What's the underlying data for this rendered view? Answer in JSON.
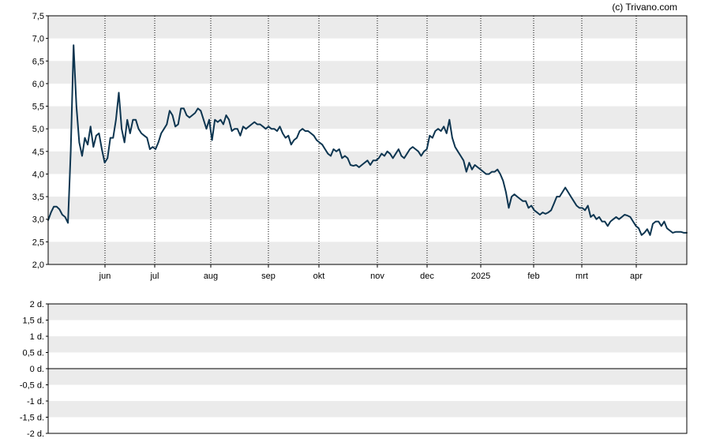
{
  "copyright": "(c) Trivano.com",
  "colors": {
    "line": "#0d3550",
    "band": "#ebebeb",
    "frame": "#000000",
    "zero_line": "#000000",
    "month_grid": "#000000"
  },
  "chart_data": [
    {
      "type": "line",
      "title": "",
      "xlabel": "",
      "ylabel": "",
      "ylim": [
        2.0,
        7.5
      ],
      "y_ticks": [
        "2,0",
        "2,5",
        "3,0",
        "3,5",
        "4,0",
        "4,5",
        "5,0",
        "5,5",
        "6,0",
        "6,5",
        "7,0",
        "7,5"
      ],
      "x_ticks": [
        "jun",
        "jul",
        "aug",
        "sep",
        "okt",
        "nov",
        "dec",
        "2025",
        "feb",
        "mrt",
        "apr"
      ],
      "grid": "alternating horizontal bands with dotted vertical month lines",
      "series": [
        {
          "values": [
            2.98,
            3.15,
            3.28,
            3.28,
            3.22,
            3.1,
            3.05,
            2.92,
            4.5,
            6.85,
            5.5,
            4.7,
            4.4,
            4.8,
            4.65,
            5.05,
            4.6,
            4.85,
            4.9,
            4.55,
            4.25,
            4.35,
            4.8,
            4.8,
            5.2,
            5.8,
            5.0,
            4.7,
            5.2,
            4.9,
            5.2,
            5.2,
            5.0,
            4.9,
            4.85,
            4.8,
            4.55,
            4.6,
            4.55,
            4.7,
            4.9,
            5.0,
            5.1,
            5.4,
            5.3,
            5.05,
            5.1,
            5.45,
            5.45,
            5.3,
            5.25,
            5.3,
            5.35,
            5.45,
            5.4,
            5.2,
            5.0,
            5.2,
            4.75,
            5.2,
            5.15,
            5.2,
            5.1,
            5.3,
            5.2,
            4.95,
            5.0,
            5.0,
            4.85,
            5.05,
            5.0,
            5.05,
            5.1,
            5.15,
            5.1,
            5.1,
            5.05,
            5.0,
            5.05,
            5.0,
            5.0,
            4.95,
            5.05,
            4.9,
            4.8,
            4.85,
            4.65,
            4.75,
            4.8,
            4.95,
            5.0,
            4.95,
            4.95,
            4.9,
            4.85,
            4.75,
            4.7,
            4.65,
            4.55,
            4.45,
            4.4,
            4.55,
            4.5,
            4.55,
            4.35,
            4.4,
            4.35,
            4.2,
            4.18,
            4.2,
            4.15,
            4.2,
            4.25,
            4.3,
            4.2,
            4.3,
            4.3,
            4.35,
            4.45,
            4.4,
            4.5,
            4.45,
            4.35,
            4.45,
            4.55,
            4.4,
            4.35,
            4.45,
            4.55,
            4.6,
            4.55,
            4.5,
            4.4,
            4.5,
            4.55,
            4.85,
            4.8,
            4.95,
            5.0,
            4.95,
            5.05,
            4.9,
            5.2,
            4.8,
            4.6,
            4.5,
            4.4,
            4.3,
            4.05,
            4.25,
            4.1,
            4.2,
            4.15,
            4.1,
            4.05,
            4.0,
            4.0,
            4.05,
            4.05,
            4.1,
            4.0,
            3.85,
            3.6,
            3.25,
            3.5,
            3.55,
            3.5,
            3.45,
            3.4,
            3.4,
            3.25,
            3.3,
            3.2,
            3.15,
            3.1,
            3.15,
            3.12,
            3.15,
            3.2,
            3.35,
            3.5,
            3.5,
            3.6,
            3.7,
            3.6,
            3.5,
            3.4,
            3.3,
            3.25,
            3.25,
            3.2,
            3.3,
            3.05,
            3.1,
            3.0,
            3.05,
            2.95,
            2.95,
            2.85,
            2.95,
            3.0,
            3.05,
            3.0,
            3.05,
            3.1,
            3.08,
            3.05,
            2.95,
            2.85,
            2.8,
            2.65,
            2.7,
            2.78,
            2.65,
            2.9,
            2.95,
            2.95,
            2.85,
            2.95,
            2.8,
            2.75,
            2.7,
            2.72,
            2.72,
            2.72,
            2.7,
            2.7
          ]
        }
      ]
    },
    {
      "type": "bar",
      "title": "",
      "xlabel": "",
      "ylabel": "",
      "ylim": [
        -2,
        2
      ],
      "y_ticks": [
        "2 d.",
        "1,5 d.",
        "1 d.",
        "0,5 d.",
        "0 d.",
        "-0,5 d.",
        "-1 d.",
        "-1,5 d.",
        "-2 d."
      ],
      "grid": "alternating horizontal bands with zero line",
      "series": []
    }
  ]
}
